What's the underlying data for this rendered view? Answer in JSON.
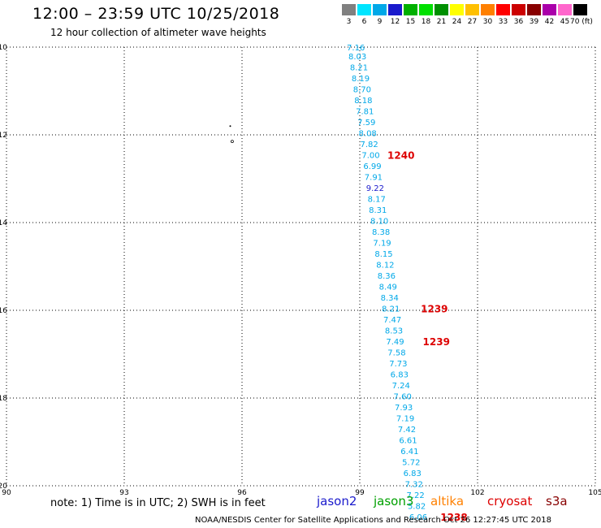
{
  "title": "12:00 – 23:59 UTC 10/25/2018",
  "subtitle": "12 hour collection of altimeter wave heights",
  "color_scale": {
    "labels": [
      "3",
      "6",
      "9",
      "12",
      "15",
      "18",
      "21",
      "24",
      "27",
      "30",
      "33",
      "36",
      "39",
      "42",
      "45",
      "70 (ft)"
    ],
    "colors": [
      "#808080",
      "#00e5ff",
      "#00a8e8",
      "#1a1acc",
      "#00b000",
      "#00e000",
      "#009000",
      "#ffff00",
      "#ffc000",
      "#ff8000",
      "#ff0000",
      "#cc0000",
      "#880000",
      "#aa00aa",
      "#ff66cc",
      "#000000"
    ]
  },
  "map": {
    "lat_labels": [
      "-10",
      "-12",
      "-14",
      "-16",
      "-18",
      "-20"
    ],
    "lon_labels": [
      "90",
      "93",
      "96",
      "99",
      "102",
      "105"
    ]
  },
  "track": {
    "color": "#00a8e8",
    "readings": [
      {
        "lat": -10.0,
        "lon": 98.9,
        "v": "7.16"
      },
      {
        "lat": -10.2,
        "lon": 98.94,
        "v": "8.03"
      },
      {
        "lat": -10.45,
        "lon": 98.98,
        "v": "8.21"
      },
      {
        "lat": -10.7,
        "lon": 99.02,
        "v": "8.19"
      },
      {
        "lat": -10.95,
        "lon": 99.06,
        "v": "8.70"
      },
      {
        "lat": -11.2,
        "lon": 99.09,
        "v": "8.18"
      },
      {
        "lat": -11.45,
        "lon": 99.13,
        "v": "7.81"
      },
      {
        "lat": -11.7,
        "lon": 99.17,
        "v": "7.59"
      },
      {
        "lat": -11.95,
        "lon": 99.2,
        "v": "8.08"
      },
      {
        "lat": -12.2,
        "lon": 99.24,
        "v": "7.82"
      },
      {
        "lat": -12.45,
        "lon": 99.28,
        "v": "7.00"
      },
      {
        "lat": -12.7,
        "lon": 99.32,
        "v": "6.99"
      },
      {
        "lat": -12.95,
        "lon": 99.35,
        "v": "7.91"
      },
      {
        "lat": -13.2,
        "lon": 99.39,
        "v": "9.22",
        "color": "#1a1acc"
      },
      {
        "lat": -13.45,
        "lon": 99.43,
        "v": "8.17"
      },
      {
        "lat": -13.7,
        "lon": 99.46,
        "v": "8.31"
      },
      {
        "lat": -13.95,
        "lon": 99.5,
        "v": "8.10"
      },
      {
        "lat": -14.2,
        "lon": 99.54,
        "v": "8.38"
      },
      {
        "lat": -14.45,
        "lon": 99.57,
        "v": "7.19"
      },
      {
        "lat": -14.7,
        "lon": 99.61,
        "v": "8.15"
      },
      {
        "lat": -14.95,
        "lon": 99.65,
        "v": "8.12"
      },
      {
        "lat": -15.2,
        "lon": 99.68,
        "v": "8.36"
      },
      {
        "lat": -15.45,
        "lon": 99.72,
        "v": "8.49"
      },
      {
        "lat": -15.7,
        "lon": 99.76,
        "v": "8.34"
      },
      {
        "lat": -15.95,
        "lon": 99.79,
        "v": "8.21"
      },
      {
        "lat": -16.2,
        "lon": 99.83,
        "v": "7.47"
      },
      {
        "lat": -16.45,
        "lon": 99.87,
        "v": "8.53"
      },
      {
        "lat": -16.7,
        "lon": 99.9,
        "v": "7.49"
      },
      {
        "lat": -16.95,
        "lon": 99.94,
        "v": "7.58"
      },
      {
        "lat": -17.2,
        "lon": 99.98,
        "v": "7.73"
      },
      {
        "lat": -17.45,
        "lon": 100.01,
        "v": "6.83"
      },
      {
        "lat": -17.7,
        "lon": 100.05,
        "v": "7.24"
      },
      {
        "lat": -17.95,
        "lon": 100.09,
        "v": "7.60"
      },
      {
        "lat": -18.2,
        "lon": 100.12,
        "v": "7.93"
      },
      {
        "lat": -18.45,
        "lon": 100.16,
        "v": "7.19"
      },
      {
        "lat": -18.7,
        "lon": 100.2,
        "v": "7.42"
      },
      {
        "lat": -18.95,
        "lon": 100.23,
        "v": "6.61"
      },
      {
        "lat": -19.2,
        "lon": 100.27,
        "v": "6.41"
      },
      {
        "lat": -19.45,
        "lon": 100.31,
        "v": "5.72"
      },
      {
        "lat": -19.7,
        "lon": 100.34,
        "v": "6.83"
      },
      {
        "lat": -19.95,
        "lon": 100.38,
        "v": "7.32"
      },
      {
        "lat": -20.2,
        "lon": 100.42,
        "v": "7.22"
      },
      {
        "lat": -20.45,
        "lon": 100.45,
        "v": "5.82"
      },
      {
        "lat": -20.7,
        "lon": 100.49,
        "v": "6.06"
      }
    ]
  },
  "time_labels": [
    {
      "text": "1240",
      "lat": -12.45,
      "lon": 100.05
    },
    {
      "text": "1239",
      "lat": -15.95,
      "lon": 100.9
    },
    {
      "text": "1239",
      "lat": -16.7,
      "lon": 100.95
    },
    {
      "text": "1238",
      "lat": -20.7,
      "lon": 101.4
    }
  ],
  "note": "note: 1) Time is in UTC; 2) SWH is in feet",
  "legend": [
    {
      "name": "jason2",
      "color": "#1a1acc"
    },
    {
      "name": "jason3",
      "color": "#00a000"
    },
    {
      "name": "altika",
      "color": "#ff8000"
    },
    {
      "name": "cryosat",
      "color": "#dd0000"
    },
    {
      "name": "s3a",
      "color": "#880000"
    }
  ],
  "footer": "NOAA/NESDIS Center for Satellite Applications and Research    Oct 26 12:27:45 UTC 2018"
}
